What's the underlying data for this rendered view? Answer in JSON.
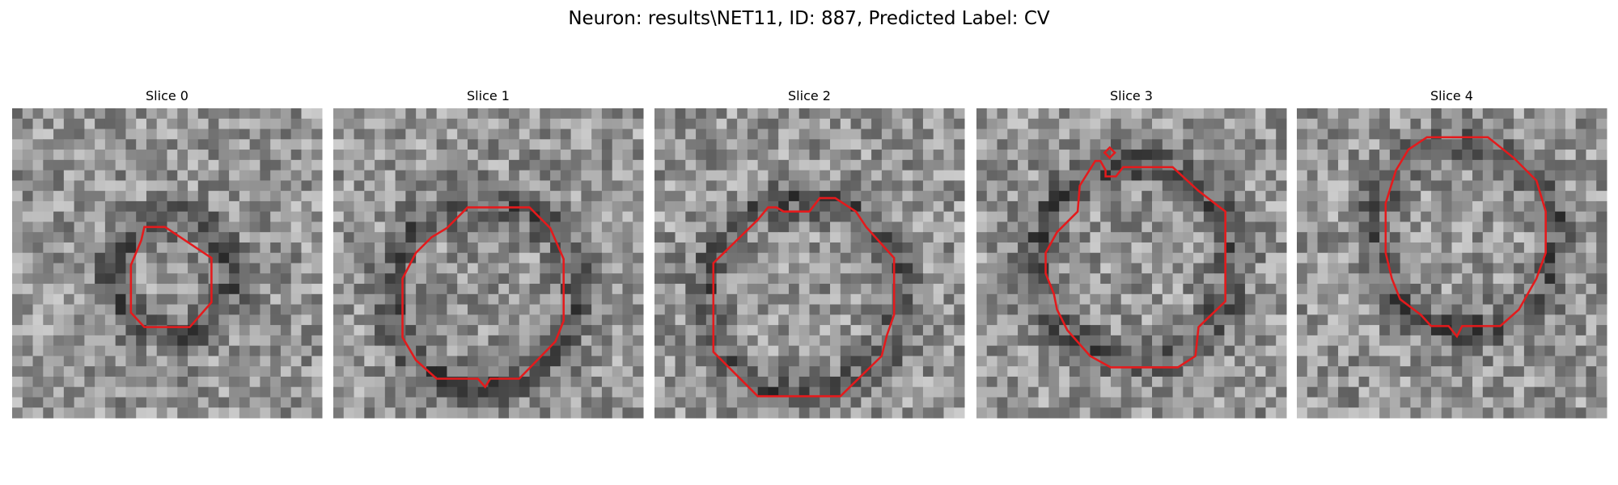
{
  "title": "Neuron: results\\NET11, ID: 887, Predicted Label: CV",
  "panels": [
    {
      "title": "Slice 0"
    },
    {
      "title": "Slice 1"
    },
    {
      "title": "Slice 2"
    },
    {
      "title": "Slice 3"
    },
    {
      "title": "Slice 4"
    }
  ]
}
